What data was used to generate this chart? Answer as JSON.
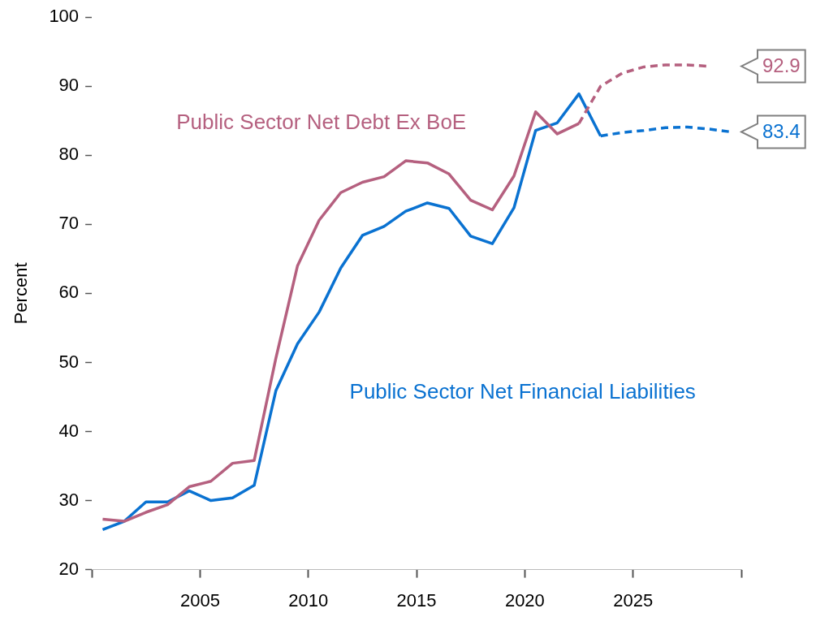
{
  "chart_data": {
    "type": "line",
    "ylabel": "Percent",
    "xlim": [
      2000,
      2030
    ],
    "xticks": [
      {
        "value": 2000,
        "label": null
      },
      2005,
      2010,
      2015,
      2020,
      2025,
      {
        "value": 2030,
        "label": null
      }
    ],
    "ylim": [
      20,
      100
    ],
    "yticks": [
      20,
      30,
      40,
      50,
      60,
      70,
      80,
      90,
      100
    ],
    "grid": false,
    "legend": false,
    "marker": "none",
    "series": [
      {
        "name": "Public Sector Net Debt Ex BoE",
        "color": "#b5607f",
        "line_style": "solid",
        "x": [
          2000.5,
          2001.5,
          2002.5,
          2003.5,
          2004.5,
          2005.5,
          2006.5,
          2007.5,
          2008.5,
          2009.5,
          2010.5,
          2011.5,
          2012.5,
          2013.5,
          2014.5,
          2015.5,
          2016.5,
          2017.5,
          2018.5,
          2019.5,
          2020.5,
          2021.5,
          2022.5
        ],
        "values": [
          27.3,
          27.0,
          28.3,
          29.4,
          32.0,
          32.8,
          35.4,
          35.8,
          50.6,
          64.0,
          70.6,
          74.6,
          76.1,
          76.9,
          79.2,
          78.9,
          77.3,
          73.5,
          72.1,
          77.0,
          86.3,
          83.1,
          84.6
        ]
      },
      {
        "color": "#b5607f",
        "line_style": "dashed",
        "x": [
          2022.5,
          2023.5,
          2024.5,
          2025.5,
          2026.5,
          2027.5,
          2028.5
        ],
        "values": [
          84.6,
          90.0,
          91.9,
          92.8,
          93.1,
          93.1,
          92.9
        ]
      },
      {
        "name": "Public Sector Net Financial Liabilities",
        "color": "#0a72d1",
        "line_style": "solid",
        "x": [
          2000.5,
          2001.5,
          2002.5,
          2003.5,
          2004.5,
          2005.5,
          2006.5,
          2007.5,
          2008.5,
          2009.5,
          2010.5,
          2011.5,
          2012.5,
          2013.5,
          2014.5,
          2015.5,
          2016.5,
          2017.5,
          2018.5,
          2019.5,
          2020.5,
          2021.5,
          2022.5,
          2023.5
        ],
        "values": [
          25.8,
          27.0,
          29.8,
          29.8,
          31.4,
          30.0,
          30.4,
          32.2,
          45.9,
          52.7,
          57.3,
          63.7,
          68.4,
          69.7,
          71.9,
          73.1,
          72.3,
          68.3,
          67.2,
          72.4,
          83.6,
          84.7,
          88.9,
          82.8
        ]
      },
      {
        "color": "#0a72d1",
        "line_style": "dashed",
        "x": [
          2023.5,
          2024.5,
          2025.5,
          2026.5,
          2027.5,
          2028.5,
          2029.5
        ],
        "values": [
          82.8,
          83.3,
          83.6,
          84.0,
          84.1,
          83.8,
          83.4
        ]
      }
    ],
    "annotations": [
      {
        "text": "92.9",
        "x": 2028.5,
        "y": 92.9
      },
      {
        "text": "83.4",
        "x": 2029.5,
        "y": 83.4
      }
    ]
  }
}
